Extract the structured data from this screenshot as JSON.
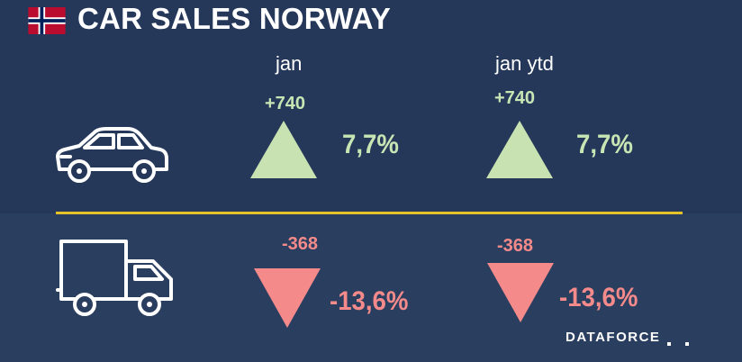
{
  "header": {
    "title": "CAR SALES NORWAY",
    "flag_icon": "norway-flag-icon"
  },
  "columns": {
    "month": "jan",
    "ytd": "jan ytd"
  },
  "rows": [
    {
      "icon": "car-icon",
      "month": {
        "delta": "+740",
        "percent": "7,7%",
        "direction": "up"
      },
      "ytd": {
        "delta": "+740",
        "percent": "7,7%",
        "direction": "up"
      }
    },
    {
      "icon": "truck-icon",
      "month": {
        "delta": "-368",
        "percent": "-13,6%",
        "direction": "down"
      },
      "ytd": {
        "delta": "-368",
        "percent": "-13,6%",
        "direction": "down"
      }
    }
  ],
  "colors": {
    "background": "#25385a",
    "positive": "#c8e6b4",
    "negative": "#f48a8a",
    "divider": "#e6c229"
  },
  "brand": {
    "name": "DATAFORCE"
  }
}
